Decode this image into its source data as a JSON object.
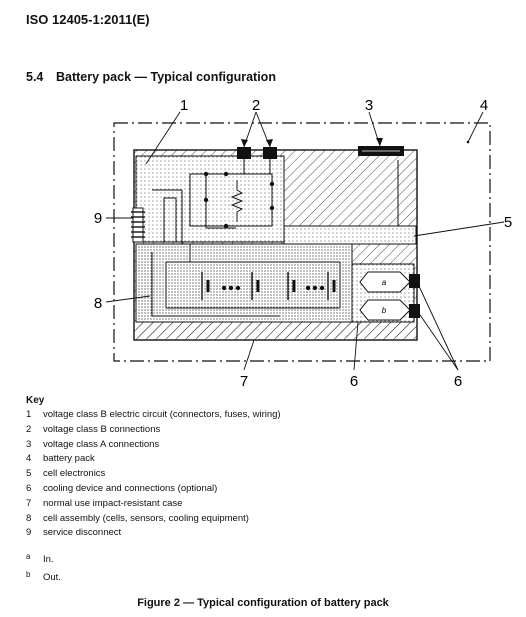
{
  "header": {
    "standard": "ISO 12405-1:2011(E)"
  },
  "section": {
    "number": "5.4",
    "title": "Battery pack — Typical configuration"
  },
  "figure": {
    "callouts": {
      "c1": "1",
      "c2": "2",
      "c3": "3",
      "c4": "4",
      "c5": "5",
      "c6a": "6",
      "c6b": "6",
      "c7": "7",
      "c8": "8",
      "c9": "9"
    },
    "inlet_label": "a",
    "outlet_label": "b",
    "caption": "Figure 2 — Typical configuration of battery pack"
  },
  "key": {
    "title": "Key",
    "items": [
      {
        "num": "1",
        "text": "voltage class B electric circuit (connectors, fuses, wiring)"
      },
      {
        "num": "2",
        "text": "voltage class B connections"
      },
      {
        "num": "3",
        "text": "voltage class A connections"
      },
      {
        "num": "4",
        "text": "battery pack"
      },
      {
        "num": "5",
        "text": "cell electronics"
      },
      {
        "num": "6",
        "text": "cooling device and connections (optional)"
      },
      {
        "num": "7",
        "text": "normal use impact-resistant case"
      },
      {
        "num": "8",
        "text": "cell assembly (cells, sensors, cooling equipment)"
      },
      {
        "num": "9",
        "text": "service disconnect"
      }
    ],
    "notes": [
      {
        "mark": "a",
        "text": "In."
      },
      {
        "mark": "b",
        "text": "Out."
      }
    ]
  }
}
